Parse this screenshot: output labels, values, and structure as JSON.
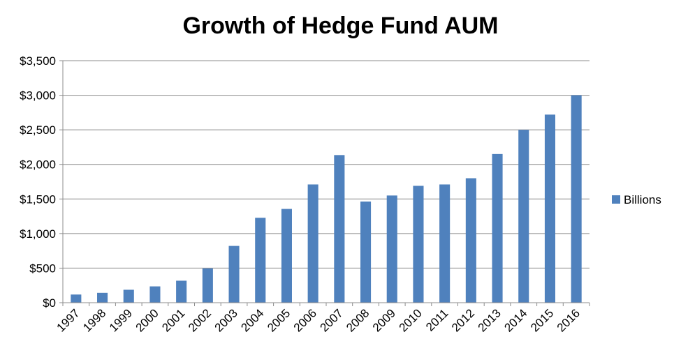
{
  "chart_data": {
    "type": "bar",
    "title": "Growth of Hedge Fund AUM",
    "xlabel": "",
    "ylabel": "",
    "categories": [
      "1997",
      "1998",
      "1999",
      "2000",
      "2001",
      "2002",
      "2003",
      "2004",
      "2005",
      "2006",
      "2007",
      "2008",
      "2009",
      "2010",
      "2011",
      "2012",
      "2013",
      "2014",
      "2015",
      "2016"
    ],
    "series": [
      {
        "name": "Billions",
        "color": "#4f81bd",
        "values": [
          118,
          143,
          187,
          236,
          318,
          496,
          821,
          1228,
          1356,
          1710,
          2135,
          1463,
          1550,
          1690,
          1710,
          1800,
          2150,
          2500,
          2720,
          3000
        ]
      }
    ],
    "ylim": [
      0,
      3500
    ],
    "yticks": [
      0,
      500,
      1000,
      1500,
      2000,
      2500,
      3000,
      3500
    ],
    "ytick_labels": [
      "$0",
      "$500",
      "$1,000",
      "$1,500",
      "$2,000",
      "$2,500",
      "$3,000",
      "$3,500"
    ],
    "grid": true,
    "legend_position": "right"
  }
}
